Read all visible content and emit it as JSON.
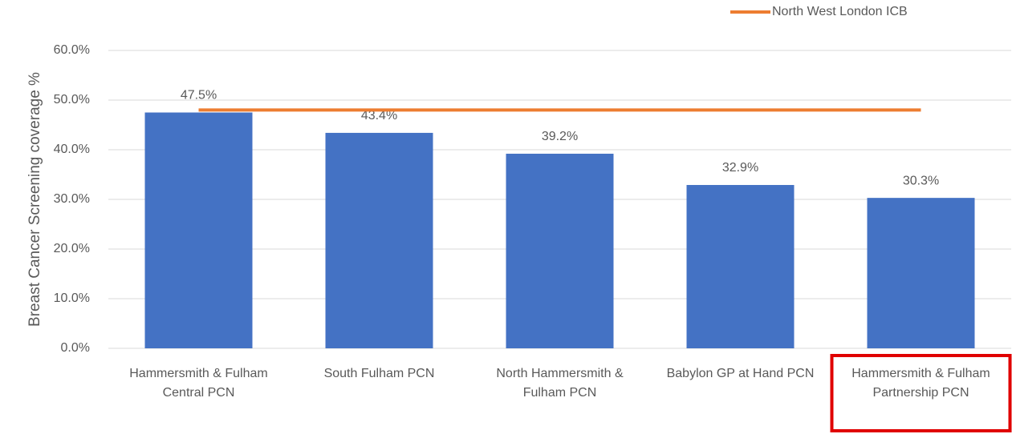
{
  "chart_data": {
    "type": "bar",
    "ylabel": "Breast Cancer Screening coverage %",
    "categories": [
      "Hammersmith & Fulham Central PCN",
      "South Fulham PCN",
      "North Hammersmith & Fulham PCN",
      "Babylon GP at Hand PCN",
      "Hammersmith & Fulham Partnership PCN"
    ],
    "series": [
      {
        "type": "bar",
        "color": "#4472c4",
        "values": [
          47.5,
          43.4,
          39.2,
          32.9,
          30.3
        ],
        "value_labels": [
          "47.5%",
          "43.4%",
          "39.2%",
          "32.9%",
          "30.3%"
        ]
      },
      {
        "type": "line",
        "name": "North West London ICB",
        "color": "#ed7d31",
        "values": [
          48.0,
          48.0,
          48.0,
          48.0,
          48.0
        ]
      }
    ],
    "ylim": [
      0,
      60
    ],
    "yticks": [
      {
        "value": 0,
        "label": "0.0%"
      },
      {
        "value": 10,
        "label": "10.0%"
      },
      {
        "value": 20,
        "label": "20.0%"
      },
      {
        "value": 30,
        "label": "30.0%"
      },
      {
        "value": 40,
        "label": "40.0%"
      },
      {
        "value": 50,
        "label": "50.0%"
      },
      {
        "value": 60,
        "label": "60.0%"
      }
    ],
    "grid": true,
    "legend": "top-right",
    "highlighted_category": 4,
    "highlight_color": "#e00000"
  }
}
